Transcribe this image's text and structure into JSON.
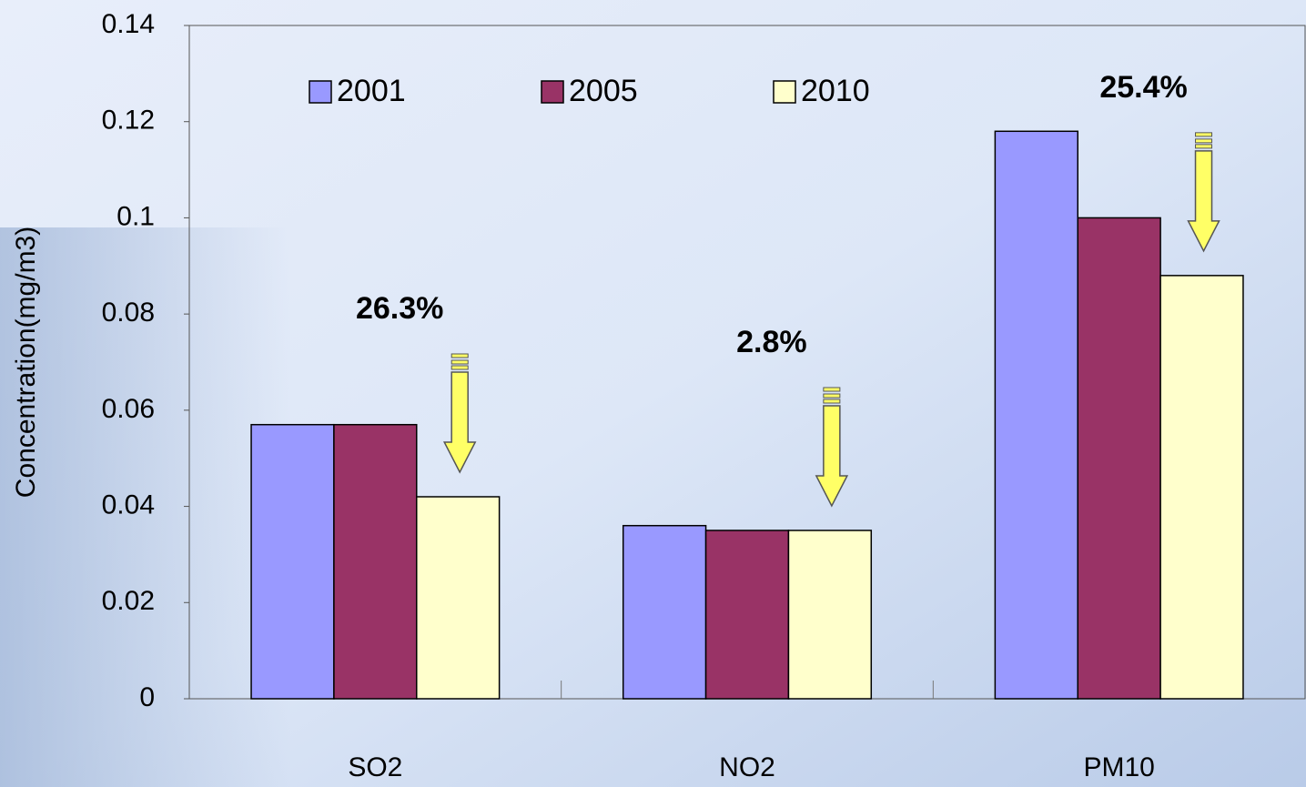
{
  "chart_data": {
    "type": "bar",
    "y_label": "Concentration(mg/m3)",
    "categories": [
      "SO2",
      "NO2",
      "PM10"
    ],
    "series": [
      {
        "name": "2001",
        "color": "#9999ff",
        "values": [
          0.057,
          0.036,
          0.118
        ]
      },
      {
        "name": "2005",
        "color": "#993366",
        "values": [
          0.057,
          0.035,
          0.1
        ]
      },
      {
        "name": "2010",
        "color": "#ffffcc",
        "values": [
          0.042,
          0.035,
          0.088
        ]
      }
    ],
    "annotations": [
      "26.3%",
      "2.8%",
      "25.4%"
    ],
    "ylim": [
      0,
      0.14
    ],
    "yticks": [
      0,
      0.02,
      0.04,
      0.06,
      0.08,
      0.1,
      0.12,
      0.14
    ],
    "legend": "top",
    "grid": false
  }
}
